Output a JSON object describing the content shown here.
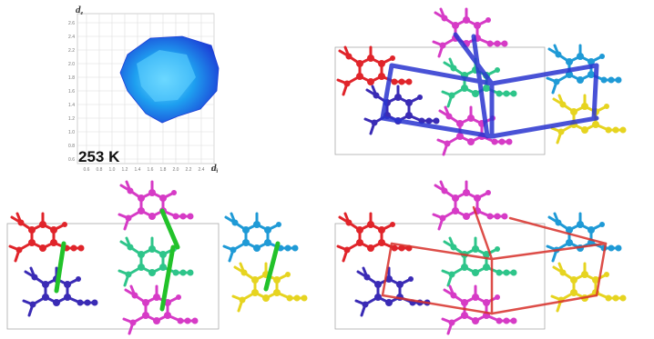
{
  "fingerprint": {
    "label": "253 K",
    "y_axis_label": "d",
    "y_axis_sub": "e",
    "x_axis_label": "d",
    "x_axis_sub": "i",
    "y_ticks": [
      "2.6",
      "2.4",
      "2.2",
      "2.0",
      "1.8",
      "1.6",
      "1.4",
      "1.2",
      "1.0",
      "0.8",
      "0.6"
    ],
    "x_ticks": [
      "0.6",
      "0.8",
      "1.0",
      "1.2",
      "1.4",
      "1.6",
      "1.8",
      "2.0",
      "2.2",
      "2.4",
      "2.6"
    ]
  }
}
